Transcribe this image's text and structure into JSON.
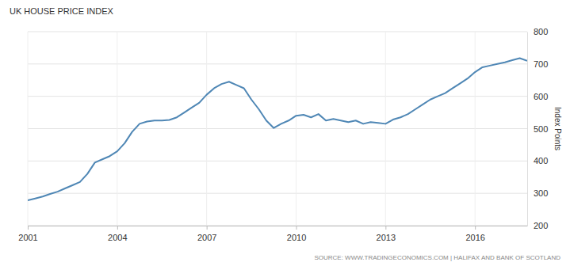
{
  "chart_data": {
    "type": "line",
    "title": "UK HOUSE PRICE INDEX",
    "y_label": "Index Points",
    "source": "SOURCE: WWW.TRADINGECONOMICS.COM | HALIFAX AND BANK OF SCOTLAND",
    "color": "#4f87b5",
    "grid": true,
    "x": [
      2001.0,
      2001.25,
      2001.5,
      2001.75,
      2002.0,
      2002.25,
      2002.5,
      2002.75,
      2003.0,
      2003.25,
      2003.5,
      2003.75,
      2004.0,
      2004.25,
      2004.5,
      2004.75,
      2005.0,
      2005.25,
      2005.5,
      2005.75,
      2006.0,
      2006.25,
      2006.5,
      2006.75,
      2007.0,
      2007.25,
      2007.5,
      2007.75,
      2008.0,
      2008.25,
      2008.5,
      2008.75,
      2009.0,
      2009.25,
      2009.5,
      2009.75,
      2010.0,
      2010.25,
      2010.5,
      2010.75,
      2011.0,
      2011.25,
      2011.5,
      2011.75,
      2012.0,
      2012.25,
      2012.5,
      2012.75,
      2013.0,
      2013.25,
      2013.5,
      2013.75,
      2014.0,
      2014.25,
      2014.5,
      2014.75,
      2015.0,
      2015.25,
      2015.5,
      2015.75,
      2016.0,
      2016.25,
      2016.5,
      2016.75,
      2017.0,
      2017.25,
      2017.5,
      2017.75
    ],
    "values": [
      278,
      284,
      290,
      298,
      305,
      315,
      325,
      335,
      360,
      395,
      405,
      415,
      430,
      455,
      490,
      515,
      522,
      525,
      525,
      527,
      535,
      550,
      565,
      580,
      605,
      625,
      638,
      645,
      635,
      625,
      590,
      560,
      525,
      502,
      515,
      525,
      540,
      543,
      535,
      545,
      525,
      530,
      525,
      520,
      525,
      515,
      520,
      518,
      515,
      528,
      535,
      545,
      560,
      575,
      590,
      600,
      610,
      625,
      640,
      655,
      675,
      690,
      695,
      700,
      705,
      712,
      718,
      710
    ],
    "xlim": [
      2001,
      2017.75
    ],
    "xticks": [
      2001,
      2004,
      2007,
      2010,
      2013,
      2016
    ],
    "ylim": [
      200,
      800
    ],
    "yticks": [
      200,
      300,
      400,
      500,
      600,
      700,
      800
    ]
  }
}
